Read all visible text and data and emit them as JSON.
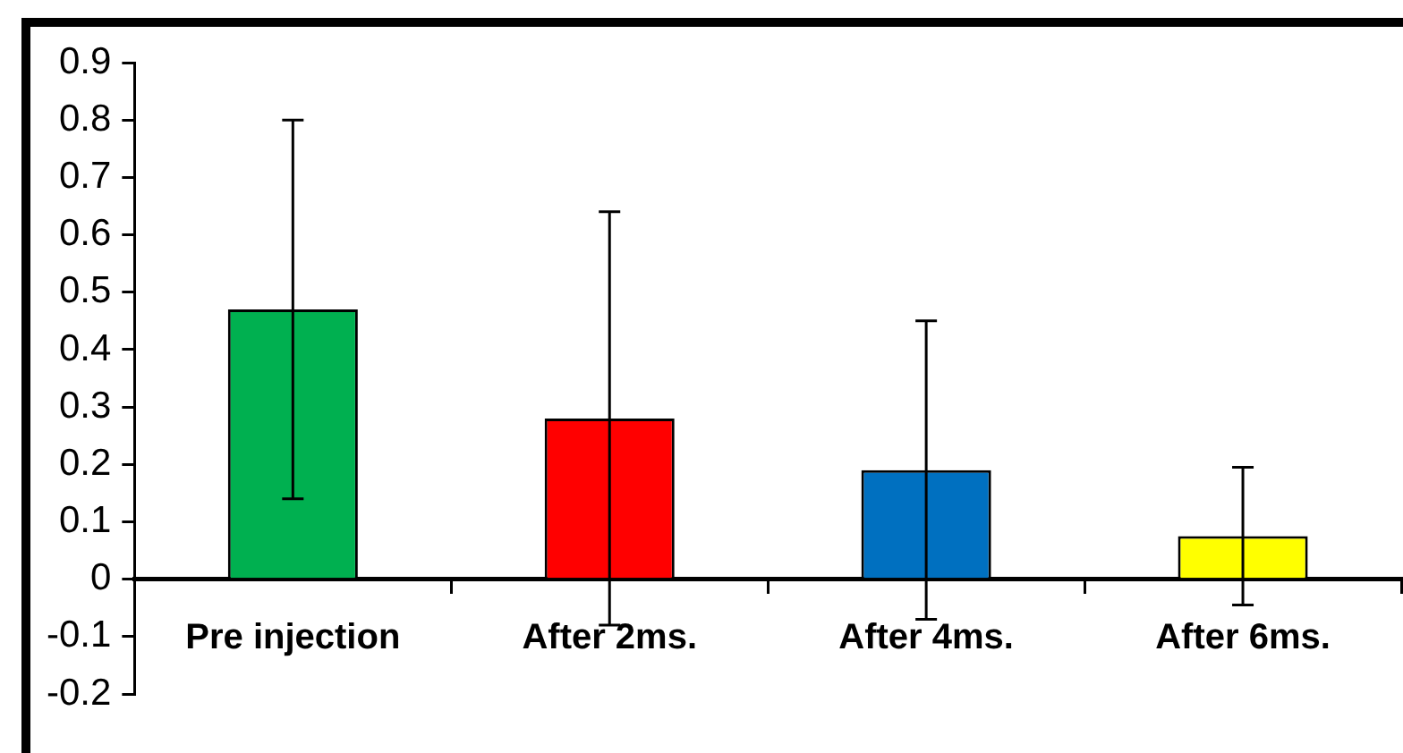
{
  "chart_data": {
    "type": "bar",
    "categories": [
      "Pre injection",
      "After 2ms.",
      "After 4ms.",
      "After 6ms."
    ],
    "values": [
      0.47,
      0.28,
      0.19,
      0.075
    ],
    "colors": [
      "#00b050",
      "#ff0000",
      "#0070c0",
      "#ffff00"
    ],
    "errors": [
      0.33,
      0.36,
      0.26,
      0.12
    ],
    "ylim": [
      -0.2,
      0.9
    ],
    "yticks": [
      -0.2,
      -0.1,
      0,
      0.1,
      0.2,
      0.3,
      0.4,
      0.5,
      0.6,
      0.7,
      0.8,
      0.9
    ],
    "grid": false,
    "legend": false
  }
}
